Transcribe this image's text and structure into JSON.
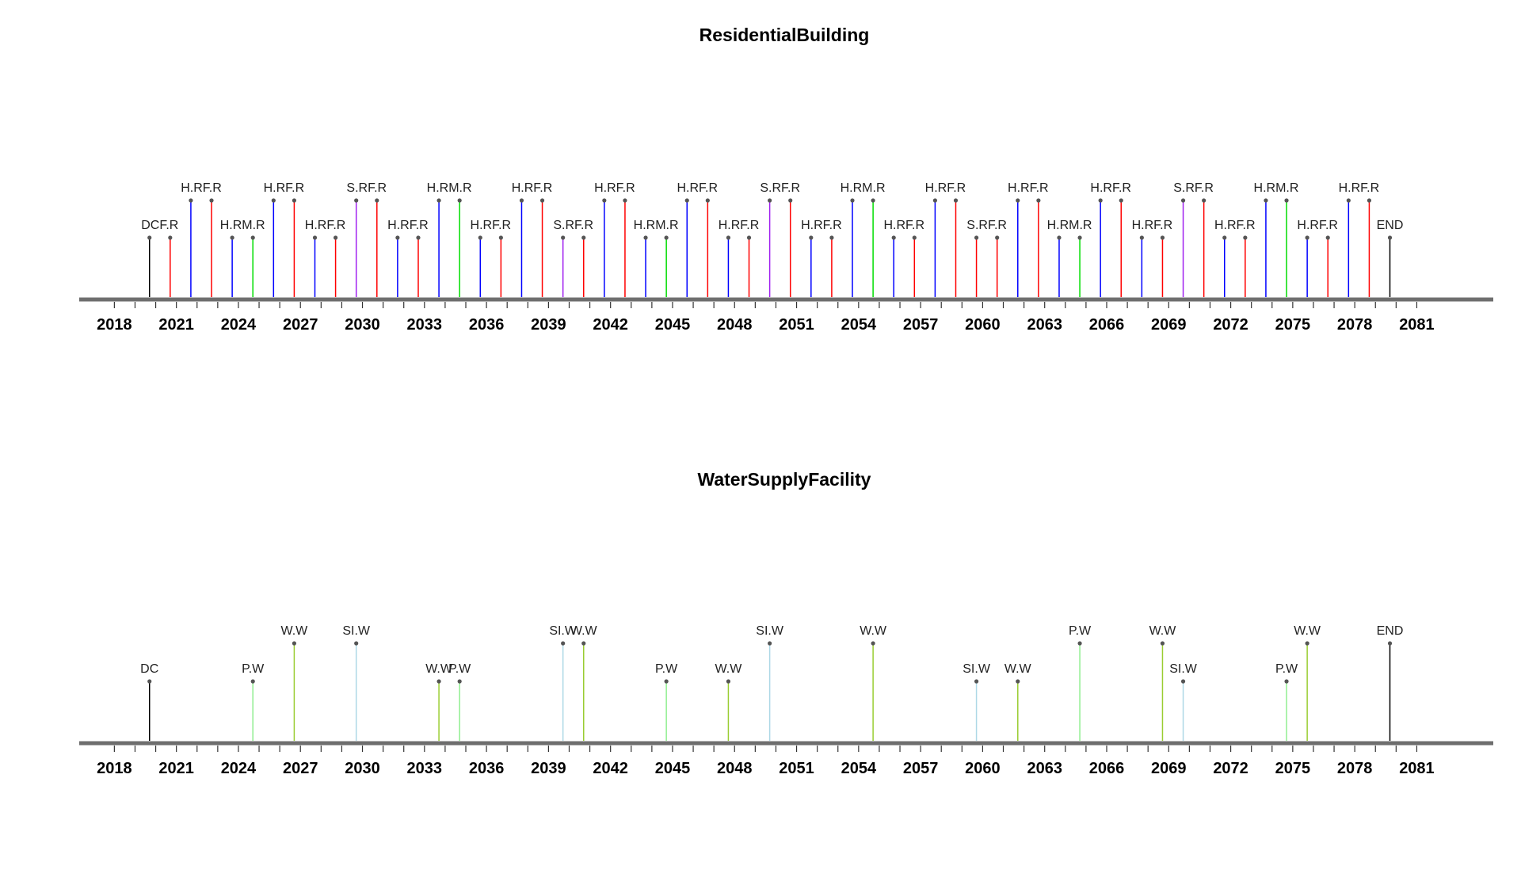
{
  "colors": {
    "axis": "#6e6e6e",
    "point": "#555555",
    "categories": {
      "DCF.R": "#000000",
      "DC": "#000000",
      "END": "#000000",
      "H.RF.R": "#ff0000",
      "H.RF.R.alt": "#0000ff",
      "H.RM.R": "#00dd00",
      "S.RF.R": "#a020f0",
      "P.W": "#90ee90",
      "W.W": "#9acd32",
      "SI.W": "#add8e6"
    }
  },
  "chart_data": [
    {
      "type": "timeline",
      "title": "ResidentialBuilding",
      "xlabel": "",
      "ylabel": "",
      "xlim": [
        2016.3,
        2084.7
      ],
      "x_ticks": [
        2018,
        2021,
        2024,
        2027,
        2030,
        2033,
        2036,
        2039,
        2042,
        2045,
        2048,
        2051,
        2054,
        2057,
        2060,
        2063,
        2066,
        2069,
        2072,
        2075,
        2078,
        2081
      ],
      "minor_tick_step": 1,
      "grid": false,
      "legend": "none",
      "events": [
        {
          "label": "DCF.R",
          "start": 2019.7,
          "end": 2020.7,
          "level": 1,
          "colors": [
            "#000000",
            "#ff0000"
          ]
        },
        {
          "label": "H.RF.R",
          "start": 2021.7,
          "end": 2022.7,
          "level": 2,
          "colors": [
            "#0000ff",
            "#ff0000"
          ]
        },
        {
          "label": "H.RM.R",
          "start": 2023.7,
          "end": 2024.7,
          "level": 1,
          "colors": [
            "#0000ff",
            "#00dd00"
          ]
        },
        {
          "label": "H.RF.R",
          "start": 2025.7,
          "end": 2026.7,
          "level": 2,
          "colors": [
            "#0000ff",
            "#ff0000"
          ]
        },
        {
          "label": "H.RF.R",
          "start": 2027.7,
          "end": 2028.7,
          "level": 1,
          "colors": [
            "#0000ff",
            "#ff0000"
          ]
        },
        {
          "label": "S.RF.R",
          "start": 2029.7,
          "end": 2030.7,
          "level": 2,
          "colors": [
            "#a020f0",
            "#ff0000"
          ]
        },
        {
          "label": "H.RF.R",
          "start": 2031.7,
          "end": 2032.7,
          "level": 1,
          "colors": [
            "#0000ff",
            "#ff0000"
          ]
        },
        {
          "label": "H.RM.R",
          "start": 2033.7,
          "end": 2034.7,
          "level": 2,
          "colors": [
            "#0000ff",
            "#00dd00"
          ]
        },
        {
          "label": "H.RF.R",
          "start": 2035.7,
          "end": 2036.7,
          "level": 1,
          "colors": [
            "#0000ff",
            "#ff0000"
          ]
        },
        {
          "label": "H.RF.R",
          "start": 2037.7,
          "end": 2038.7,
          "level": 2,
          "colors": [
            "#0000ff",
            "#ff0000"
          ]
        },
        {
          "label": "S.RF.R",
          "start": 2039.7,
          "end": 2040.7,
          "level": 1,
          "colors": [
            "#a020f0",
            "#ff0000"
          ]
        },
        {
          "label": "H.RF.R",
          "start": 2041.7,
          "end": 2042.7,
          "level": 2,
          "colors": [
            "#0000ff",
            "#ff0000"
          ]
        },
        {
          "label": "H.RM.R",
          "start": 2043.7,
          "end": 2044.7,
          "level": 1,
          "colors": [
            "#0000ff",
            "#00dd00"
          ]
        },
        {
          "label": "H.RF.R",
          "start": 2045.7,
          "end": 2046.7,
          "level": 2,
          "colors": [
            "#0000ff",
            "#ff0000"
          ]
        },
        {
          "label": "H.RF.R",
          "start": 2047.7,
          "end": 2048.7,
          "level": 1,
          "colors": [
            "#0000ff",
            "#ff0000"
          ]
        },
        {
          "label": "S.RF.R",
          "start": 2049.7,
          "end": 2050.7,
          "level": 2,
          "colors": [
            "#a020f0",
            "#ff0000"
          ]
        },
        {
          "label": "H.RF.R",
          "start": 2051.7,
          "end": 2052.7,
          "level": 1,
          "colors": [
            "#0000ff",
            "#ff0000"
          ]
        },
        {
          "label": "H.RM.R",
          "start": 2053.7,
          "end": 2054.7,
          "level": 2,
          "colors": [
            "#0000ff",
            "#00dd00"
          ]
        },
        {
          "label": "H.RF.R",
          "start": 2055.7,
          "end": 2056.7,
          "level": 1,
          "colors": [
            "#0000ff",
            "#ff0000"
          ]
        },
        {
          "label": "H.RF.R",
          "start": 2057.7,
          "end": 2058.7,
          "level": 2,
          "colors": [
            "#0000ff",
            "#ff0000"
          ]
        },
        {
          "label": "S.RF.R",
          "start": 2059.7,
          "end": 2060.7,
          "level": 1,
          "colors": [
            "#ff0000",
            "#ff0000"
          ]
        },
        {
          "label": "H.RF.R",
          "start": 2061.7,
          "end": 2062.7,
          "level": 2,
          "colors": [
            "#0000ff",
            "#ff0000"
          ]
        },
        {
          "label": "H.RM.R",
          "start": 2063.7,
          "end": 2064.7,
          "level": 1,
          "colors": [
            "#0000ff",
            "#00dd00"
          ]
        },
        {
          "label": "H.RF.R",
          "start": 2065.7,
          "end": 2066.7,
          "level": 2,
          "colors": [
            "#0000ff",
            "#ff0000"
          ]
        },
        {
          "label": "H.RF.R",
          "start": 2067.7,
          "end": 2068.7,
          "level": 1,
          "colors": [
            "#0000ff",
            "#ff0000"
          ]
        },
        {
          "label": "S.RF.R",
          "start": 2069.7,
          "end": 2070.7,
          "level": 2,
          "colors": [
            "#a020f0",
            "#ff0000"
          ]
        },
        {
          "label": "H.RF.R",
          "start": 2071.7,
          "end": 2072.7,
          "level": 1,
          "colors": [
            "#0000ff",
            "#ff0000"
          ]
        },
        {
          "label": "H.RM.R",
          "start": 2073.7,
          "end": 2074.7,
          "level": 2,
          "colors": [
            "#0000ff",
            "#00dd00"
          ]
        },
        {
          "label": "H.RF.R",
          "start": 2075.7,
          "end": 2076.7,
          "level": 1,
          "colors": [
            "#0000ff",
            "#ff0000"
          ]
        },
        {
          "label": "H.RF.R",
          "start": 2077.7,
          "end": 2078.7,
          "level": 2,
          "colors": [
            "#0000ff",
            "#ff0000"
          ]
        },
        {
          "label": "END",
          "start": 2079.7,
          "end": 2079.7,
          "level": 1,
          "colors": [
            "#000000"
          ]
        }
      ]
    },
    {
      "type": "timeline",
      "title": "WaterSupplyFacility",
      "xlabel": "",
      "ylabel": "",
      "xlim": [
        2016.3,
        2084.7
      ],
      "x_ticks": [
        2018,
        2021,
        2024,
        2027,
        2030,
        2033,
        2036,
        2039,
        2042,
        2045,
        2048,
        2051,
        2054,
        2057,
        2060,
        2063,
        2066,
        2069,
        2072,
        2075,
        2078,
        2081
      ],
      "minor_tick_step": 1,
      "grid": false,
      "legend": "none",
      "events": [
        {
          "label": "DC",
          "start": 2019.7,
          "end": 2019.7,
          "level": 1,
          "colors": [
            "#000000"
          ]
        },
        {
          "label": "P.W",
          "start": 2024.7,
          "end": 2024.7,
          "level": 1,
          "colors": [
            "#90ee90"
          ]
        },
        {
          "label": "W.W",
          "start": 2026.7,
          "end": 2026.7,
          "level": 2,
          "colors": [
            "#9acd32"
          ]
        },
        {
          "label": "SI.W",
          "start": 2029.7,
          "end": 2029.7,
          "level": 2,
          "colors": [
            "#add8e6"
          ]
        },
        {
          "label": "W.W",
          "start": 2033.7,
          "end": 2033.7,
          "level": 1,
          "colors": [
            "#9acd32"
          ]
        },
        {
          "label": "P.W",
          "start": 2034.7,
          "end": 2034.7,
          "level": 1,
          "colors": [
            "#90ee90"
          ]
        },
        {
          "label": "SI.W",
          "start": 2039.7,
          "end": 2039.7,
          "level": 2,
          "colors": [
            "#add8e6"
          ]
        },
        {
          "label": "W.W",
          "start": 2040.7,
          "end": 2040.7,
          "level": 2,
          "colors": [
            "#9acd32"
          ]
        },
        {
          "label": "P.W",
          "start": 2044.7,
          "end": 2044.7,
          "level": 1,
          "colors": [
            "#90ee90"
          ]
        },
        {
          "label": "W.W",
          "start": 2047.7,
          "end": 2047.7,
          "level": 1,
          "colors": [
            "#9acd32"
          ]
        },
        {
          "label": "SI.W",
          "start": 2049.7,
          "end": 2049.7,
          "level": 2,
          "colors": [
            "#add8e6"
          ]
        },
        {
          "label": "W.W",
          "start": 2054.7,
          "end": 2054.7,
          "level": 2,
          "colors": [
            "#9acd32"
          ]
        },
        {
          "label": "SI.W",
          "start": 2059.7,
          "end": 2059.7,
          "level": 1,
          "colors": [
            "#add8e6"
          ]
        },
        {
          "label": "W.W",
          "start": 2061.7,
          "end": 2061.7,
          "level": 1,
          "colors": [
            "#9acd32"
          ]
        },
        {
          "label": "P.W",
          "start": 2064.7,
          "end": 2064.7,
          "level": 2,
          "colors": [
            "#90ee90"
          ]
        },
        {
          "label": "W.W",
          "start": 2068.7,
          "end": 2068.7,
          "level": 2,
          "colors": [
            "#9acd32"
          ]
        },
        {
          "label": "SI.W",
          "start": 2069.7,
          "end": 2069.7,
          "level": 1,
          "colors": [
            "#add8e6"
          ]
        },
        {
          "label": "P.W",
          "start": 2074.7,
          "end": 2074.7,
          "level": 1,
          "colors": [
            "#90ee90"
          ]
        },
        {
          "label": "W.W",
          "start": 2075.7,
          "end": 2075.7,
          "level": 2,
          "colors": [
            "#9acd32"
          ]
        },
        {
          "label": "END",
          "start": 2079.7,
          "end": 2079.7,
          "level": 2,
          "colors": [
            "#000000"
          ]
        }
      ]
    }
  ]
}
